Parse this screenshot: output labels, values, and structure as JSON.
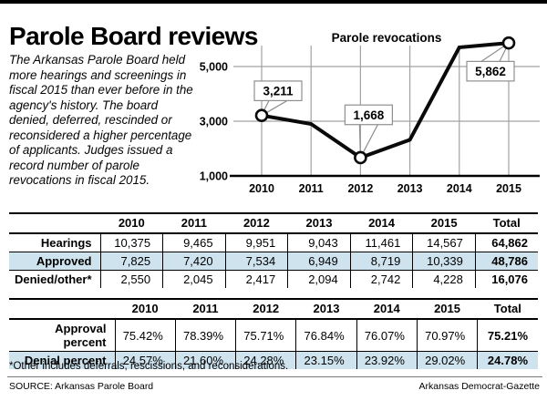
{
  "masthead": {
    "title": "Parole Board reviews"
  },
  "intro": "The Arkansas Parole Board held\nmore hearings and screenings in\nfiscal 2015 than ever before in the\nagency's history. The board\ndenied, deferred, rescinded or\nreconsidered a higher percentage\nof applicants. Judges issued a\nrecord number of parole\nrevocations in fiscal 2015.",
  "chart_data": {
    "type": "line",
    "title": "Parole revocations",
    "categories": [
      "2010",
      "2011",
      "2012",
      "2013",
      "2014",
      "2015"
    ],
    "values": [
      3211,
      2900,
      1668,
      2320,
      5700,
      5862
    ],
    "annotations": [
      {
        "index": 0,
        "label": "3,211"
      },
      {
        "index": 2,
        "label": "1,668"
      },
      {
        "index": 5,
        "label": "5,862"
      }
    ],
    "yticks": [
      1000,
      3000,
      5000
    ],
    "ytick_labels": [
      "1,000",
      "3,000",
      "5,000"
    ],
    "ylim": [
      1000,
      5900
    ],
    "grid": true,
    "legend": false
  },
  "tables": [
    {
      "columns": [
        "",
        "2010",
        "2011",
        "2012",
        "2013",
        "2014",
        "2015",
        "Total"
      ],
      "rows": [
        {
          "label": "Hearings",
          "values": [
            "10,375",
            "9,465",
            "9,951",
            "9,043",
            "11,461",
            "14,567"
          ],
          "total": "64,862",
          "highlight": false
        },
        {
          "label": "Approved",
          "values": [
            "7,825",
            "7,420",
            "7,534",
            "6,949",
            "8,719",
            "10,339"
          ],
          "total": "48,786",
          "highlight": true
        },
        {
          "label": "Denied/other*",
          "values": [
            "2,550",
            "2,045",
            "2,417",
            "2,094",
            "2,742",
            "4,228"
          ],
          "total": "16,076",
          "highlight": false
        }
      ]
    },
    {
      "columns": [
        "",
        "2010",
        "2011",
        "2012",
        "2013",
        "2014",
        "2015",
        "Total"
      ],
      "rows": [
        {
          "label": "Approval percent",
          "values": [
            "75.42%",
            "78.39%",
            "75.71%",
            "76.84%",
            "76.07%",
            "70.97%"
          ],
          "total": "75.21%",
          "highlight": false
        },
        {
          "label": "Denial percent",
          "values": [
            "24.57%",
            "21.60%",
            "24.28%",
            "23.15%",
            "23.92%",
            "29.02%"
          ],
          "total": "24.78%",
          "highlight": true
        }
      ]
    }
  ],
  "footnote": "*Other includes deferrals, rescissions, and reconsiderations.",
  "source": {
    "left": "SOURCE: Arkansas Parole Board",
    "right": "Arkansas Democrat-Gazette"
  },
  "colors": {
    "highlight": "#cfe3ee",
    "grid": "#a2a2a2",
    "line": "#0a0a0a",
    "callout_border": "#8f8f8f"
  }
}
